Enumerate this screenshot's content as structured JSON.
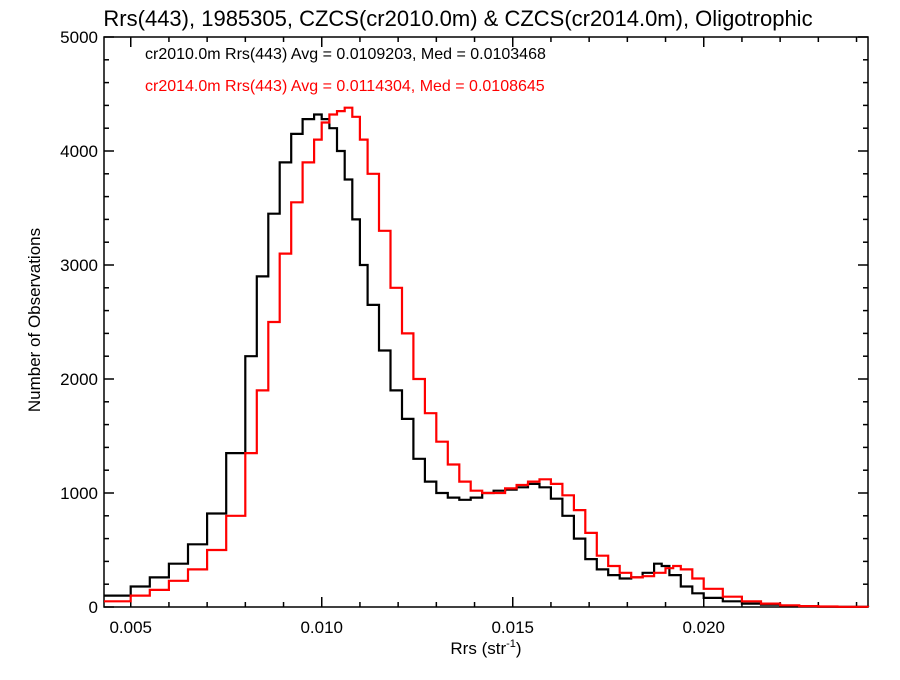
{
  "chart_data": {
    "type": "line",
    "title": "Rrs(443), 1985305, CZCS(cr2010.0m) & CZCS(cr2014.0m), Oligotrophic",
    "xlabel": "Rrs (str",
    "xlabel_sup": "-1",
    "xlabel_close": ")",
    "ylabel": "Number of Observations",
    "xlim": [
      0.0043,
      0.0243
    ],
    "ylim": [
      0,
      5000
    ],
    "x_ticks": [
      0.005,
      0.01,
      0.015,
      0.02
    ],
    "x_tick_labels": [
      "0.005",
      "0.010",
      "0.015",
      "0.020"
    ],
    "y_ticks": [
      0,
      1000,
      2000,
      3000,
      4000,
      5000
    ],
    "y_tick_labels": [
      "0",
      "1000",
      "2000",
      "3000",
      "4000",
      "5000"
    ],
    "grid": false,
    "legend_position": "top-left",
    "series": [
      {
        "name": "cr2010.0m Rrs(443) Avg = 0.0109203, Med = 0.0103468",
        "color": "#000000",
        "x": [
          0.0043,
          0.005,
          0.0055,
          0.006,
          0.0065,
          0.007,
          0.0075,
          0.008,
          0.0083,
          0.0086,
          0.0089,
          0.0092,
          0.0095,
          0.0098,
          0.01,
          0.0102,
          0.0104,
          0.0106,
          0.0108,
          0.011,
          0.0112,
          0.0115,
          0.0118,
          0.0121,
          0.0124,
          0.0127,
          0.013,
          0.0133,
          0.0136,
          0.0139,
          0.0142,
          0.0145,
          0.0148,
          0.0151,
          0.0154,
          0.0157,
          0.016,
          0.0163,
          0.0166,
          0.0169,
          0.0172,
          0.0175,
          0.0178,
          0.0181,
          0.0184,
          0.0187,
          0.0189,
          0.0191,
          0.0194,
          0.0197,
          0.02,
          0.0205,
          0.021,
          0.0215,
          0.022,
          0.0225,
          0.023,
          0.0235,
          0.0243
        ],
        "y": [
          100,
          180,
          260,
          380,
          550,
          820,
          1350,
          2200,
          2900,
          3450,
          3900,
          4150,
          4280,
          4320,
          4280,
          4200,
          4000,
          3750,
          3400,
          3000,
          2650,
          2250,
          1900,
          1650,
          1300,
          1100,
          1000,
          960,
          940,
          960,
          1000,
          1020,
          1030,
          1050,
          1080,
          1050,
          950,
          800,
          600,
          420,
          330,
          280,
          250,
          260,
          300,
          380,
          360,
          280,
          180,
          120,
          80,
          50,
          30,
          20,
          10,
          5,
          3,
          2,
          0
        ]
      },
      {
        "name": "cr2014.0m Rrs(443) Avg = 0.0114304, Med = 0.0108645",
        "color": "#ff0000",
        "x": [
          0.0043,
          0.005,
          0.0055,
          0.006,
          0.0065,
          0.007,
          0.0075,
          0.008,
          0.0083,
          0.0086,
          0.0089,
          0.0092,
          0.0095,
          0.0098,
          0.01,
          0.0102,
          0.0104,
          0.0106,
          0.0108,
          0.011,
          0.0112,
          0.0115,
          0.0118,
          0.0121,
          0.0124,
          0.0127,
          0.013,
          0.0133,
          0.0136,
          0.0139,
          0.0142,
          0.0145,
          0.0148,
          0.0151,
          0.0154,
          0.0157,
          0.016,
          0.0163,
          0.0166,
          0.0169,
          0.0172,
          0.0175,
          0.0178,
          0.0181,
          0.0184,
          0.0187,
          0.019,
          0.0192,
          0.0194,
          0.0197,
          0.02,
          0.0205,
          0.021,
          0.0215,
          0.022,
          0.0225,
          0.023,
          0.0235,
          0.0243
        ],
        "y": [
          50,
          100,
          150,
          230,
          330,
          500,
          800,
          1350,
          1900,
          2500,
          3100,
          3550,
          3900,
          4100,
          4250,
          4320,
          4350,
          4380,
          4300,
          4100,
          3800,
          3300,
          2800,
          2400,
          2000,
          1700,
          1450,
          1250,
          1100,
          1020,
          1000,
          1000,
          1040,
          1070,
          1100,
          1120,
          1080,
          980,
          850,
          650,
          450,
          360,
          300,
          260,
          270,
          300,
          340,
          360,
          330,
          250,
          160,
          90,
          50,
          30,
          15,
          8,
          4,
          2,
          0
        ]
      }
    ]
  }
}
